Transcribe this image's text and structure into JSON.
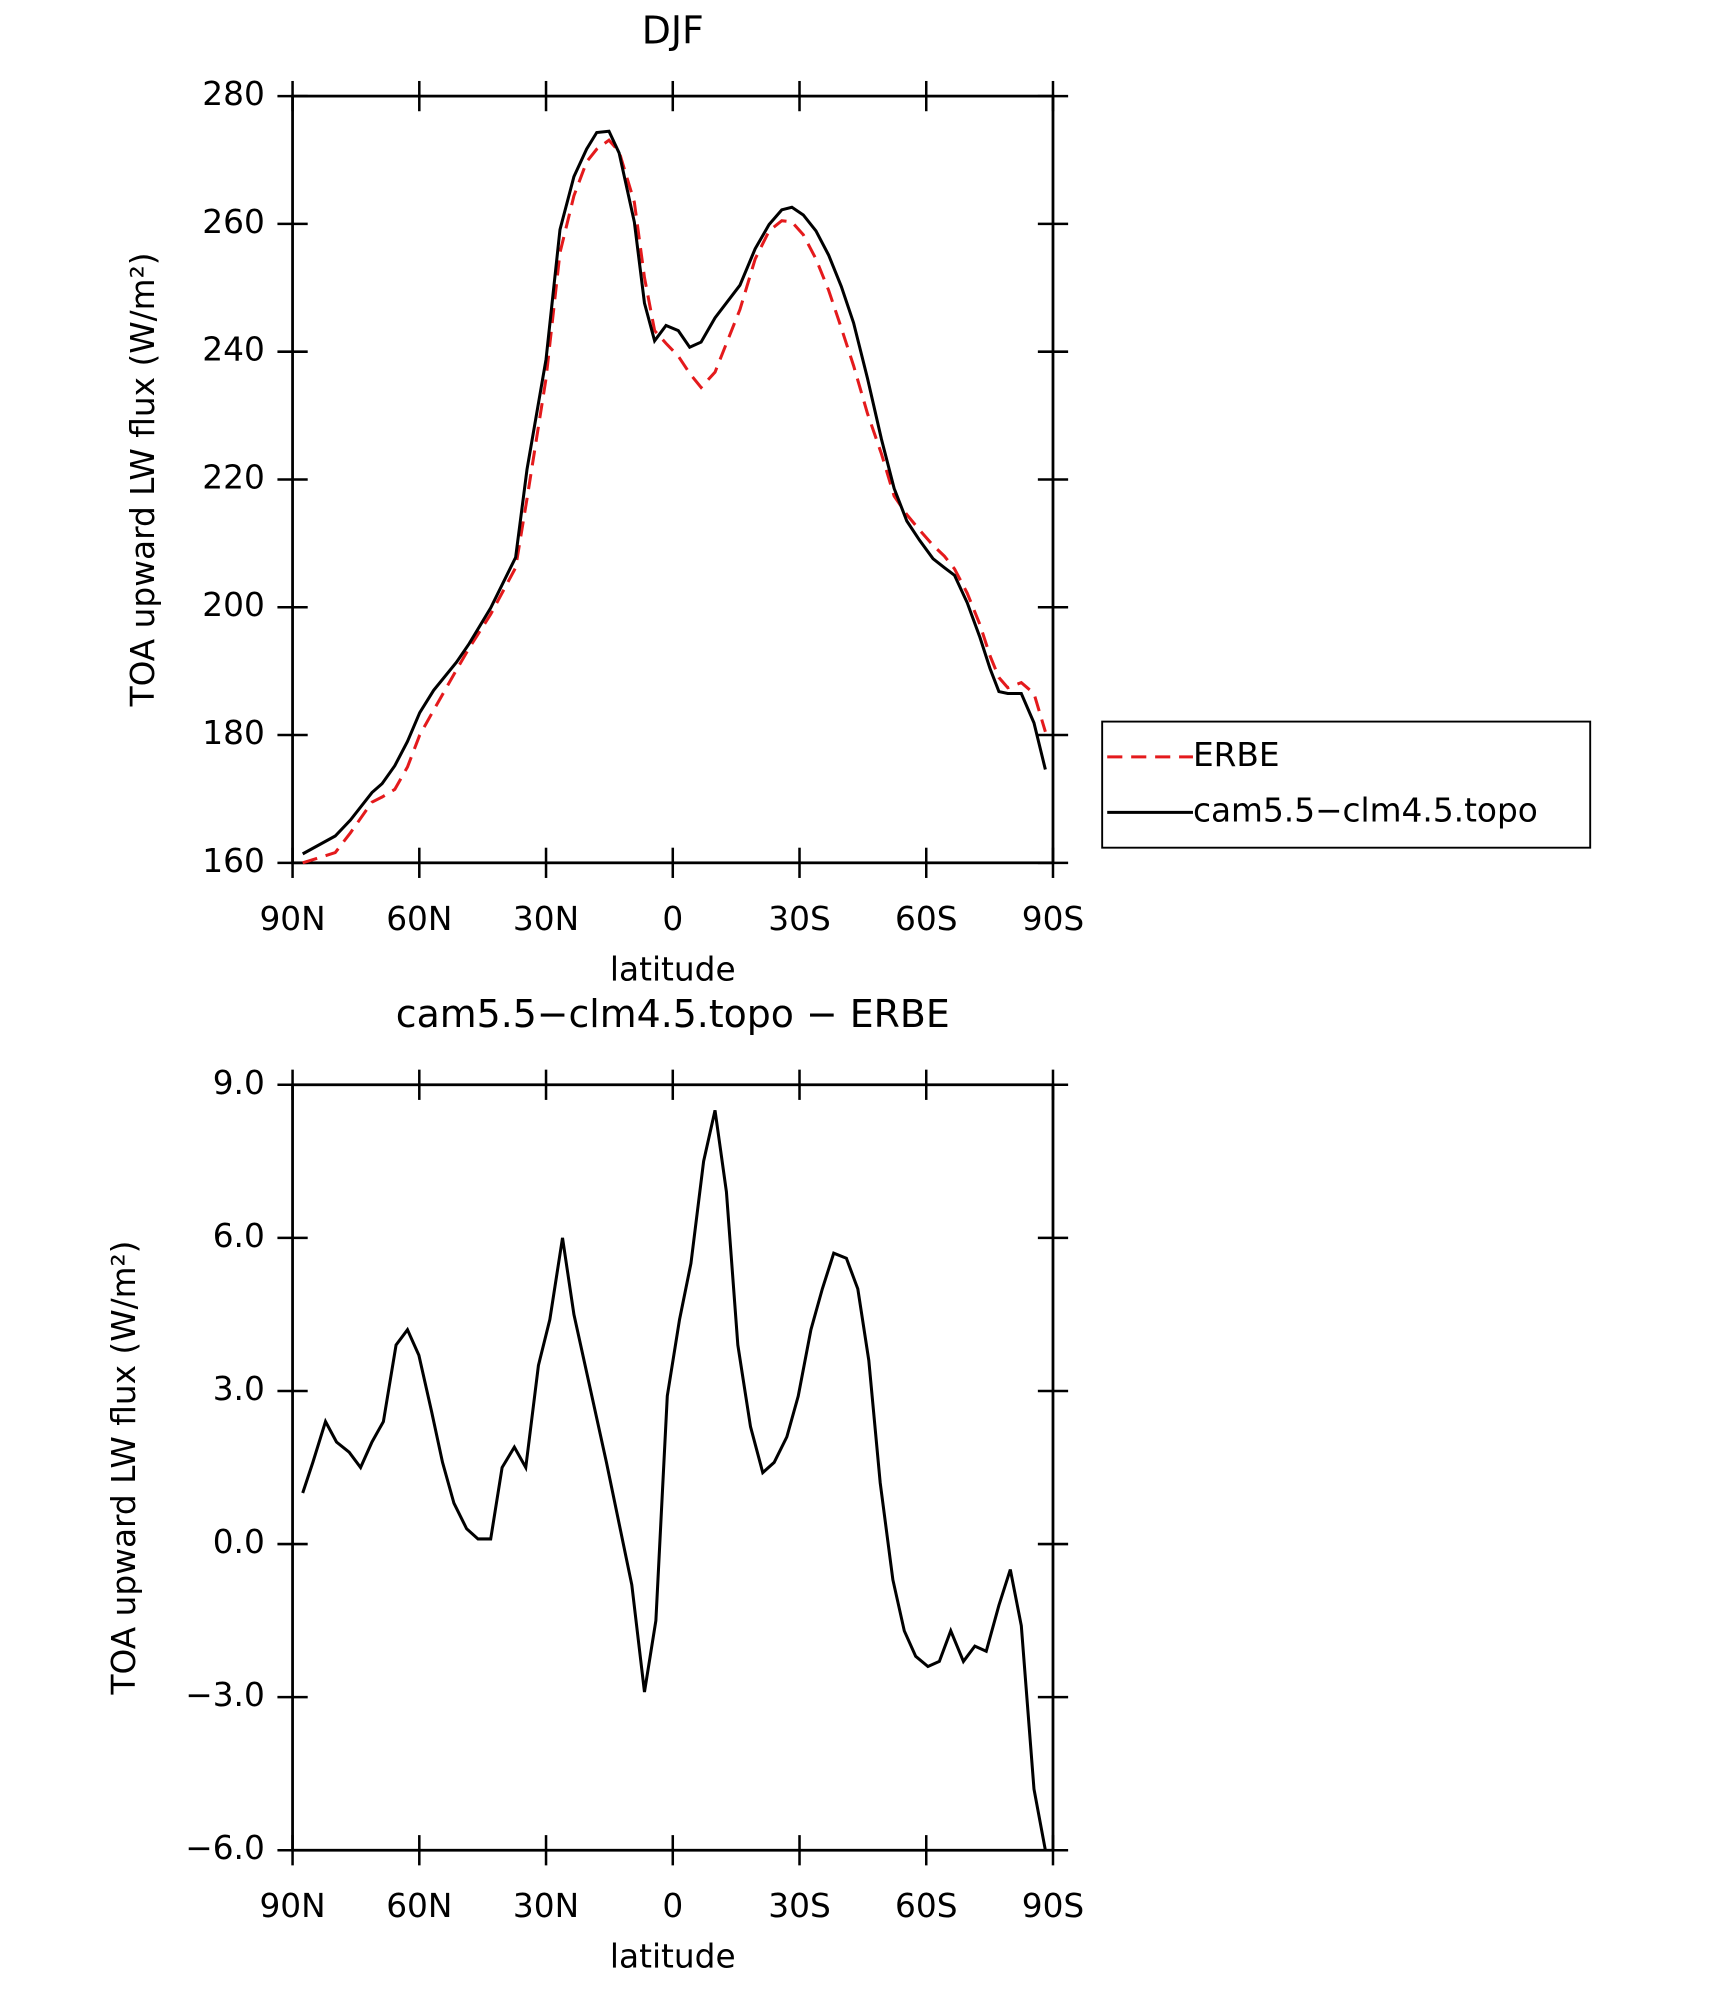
{
  "chart_data": [
    {
      "type": "line",
      "title": "DJF",
      "xlabel": "latitude",
      "ylabel": "TOA upward LW flux (W/m²)",
      "x": [
        87.6,
        79.9,
        76.3,
        71.2,
        68.8,
        65.8,
        62.8,
        59.9,
        56.6,
        51.2,
        48.2,
        43.1,
        37.2,
        34.5,
        30,
        26.7,
        23.4,
        20.4,
        18,
        15.1,
        12.7,
        9.1,
        6.7,
        4.3,
        1.6,
        -1.3,
        -4,
        -6.7,
        -10,
        -15.9,
        -19.5,
        -22.8,
        -25.8,
        -28.2,
        -30.9,
        -33.9,
        -36.9,
        -39.9,
        -42.8,
        -46.1,
        -49.4,
        -52.4,
        -55.4,
        -58.4,
        -61.6,
        -64.3,
        -66.7,
        -69.7,
        -72.7,
        -75.1,
        -77.2,
        -79.3,
        -82.5,
        -85.5,
        -88.2
      ],
      "series": [
        {
          "name": "ERBE",
          "color": "#e41a1c",
          "dash": "dashed",
          "values": [
            160,
            161.6,
            164.7,
            169.5,
            170.3,
            171.5,
            175,
            180,
            183.9,
            190.2,
            193.6,
            198.9,
            206.2,
            217,
            235.8,
            255.5,
            264.4,
            269.7,
            271.7,
            273.1,
            271.3,
            263.4,
            251.6,
            243.3,
            241.3,
            239.3,
            236.6,
            234.4,
            236.8,
            246.6,
            254.5,
            258.9,
            260.5,
            260.3,
            258.3,
            254.5,
            249.6,
            243.7,
            237.8,
            230.3,
            224,
            217.4,
            214.5,
            212.1,
            209.7,
            208,
            206,
            202.2,
            197.3,
            192.4,
            189,
            187.4,
            188.2,
            186.5,
            180.5
          ]
        },
        {
          "name": "cam5.5−clm4.5.topo",
          "color": "#000000",
          "dash": "solid",
          "values": [
            161.4,
            164.2,
            166.7,
            171,
            172.4,
            175.2,
            179,
            183.5,
            187,
            191.4,
            194.3,
            199.9,
            207.8,
            221.6,
            238.8,
            259.1,
            267.4,
            271.7,
            274.3,
            274.5,
            271.1,
            260.3,
            247.6,
            241.7,
            244.1,
            243.3,
            240.7,
            241.5,
            245.3,
            250.4,
            256.1,
            259.9,
            262.2,
            262.6,
            261.4,
            258.9,
            255.1,
            250.2,
            244.5,
            235.8,
            226.3,
            218.6,
            213.5,
            210.5,
            207.6,
            206.2,
            205,
            200.7,
            195.3,
            190.4,
            186.8,
            186.5,
            186.5,
            181.9,
            174.6
          ]
        }
      ],
      "xlim": [
        90,
        -90
      ],
      "xticks": [
        {
          "value": 90,
          "label": "90N"
        },
        {
          "value": 60,
          "label": "60N"
        },
        {
          "value": 30,
          "label": "30N"
        },
        0,
        {
          "value": -30,
          "label": "30S"
        },
        {
          "value": -60,
          "label": "60S"
        },
        {
          "value": -90,
          "label": "90S"
        }
      ],
      "ylim": [
        160,
        280
      ],
      "yticks": [
        160,
        180,
        200,
        220,
        240,
        260,
        280
      ],
      "legend": "outside-right"
    },
    {
      "type": "line",
      "title": "cam5.5−clm4.5.topo − ERBE",
      "xlabel": "latitude",
      "ylabel": "TOA upward LW flux (W/m²)",
      "x": [
        87.6,
        85.2,
        82.2,
        79.6,
        76.6,
        73.9,
        71.2,
        68.5,
        65.5,
        62.8,
        60.1,
        57.1,
        54.5,
        51.8,
        48.8,
        46.1,
        43.1,
        40.4,
        37.5,
        34.8,
        31.8,
        29.1,
        26.1,
        23.4,
        15.7,
        9.7,
        6.7,
        4,
        1.3,
        -1.6,
        -4.3,
        -7.3,
        -10,
        -12.7,
        -15.4,
        -18.4,
        -21.3,
        -24,
        -27,
        -29.7,
        -32.7,
        -35.4,
        -38.1,
        -41.1,
        -43.8,
        -46.4,
        -49.1,
        -52.1,
        -54.8,
        -57.5,
        -60.4,
        -63.1,
        -65.8,
        -68.8,
        -71.5,
        -74.2,
        -77.2,
        -79.9,
        -82.5,
        -85.5,
        -88.2
      ],
      "series": [
        {
          "color": "#000000",
          "dash": "solid",
          "values": [
            1.0,
            1.6,
            2.4,
            2.0,
            1.8,
            1.5,
            2.0,
            2.4,
            3.9,
            4.2,
            3.7,
            2.6,
            1.6,
            0.8,
            0.3,
            0.1,
            0.1,
            1.5,
            1.9,
            1.5,
            3.5,
            4.4,
            6.0,
            4.5,
            1.6,
            -0.8,
            -2.9,
            -1.5,
            2.9,
            4.4,
            5.5,
            7.5,
            8.5,
            6.9,
            3.9,
            2.3,
            1.4,
            1.6,
            2.1,
            2.9,
            4.2,
            5.0,
            5.7,
            5.6,
            5.0,
            3.6,
            1.2,
            -0.7,
            -1.7,
            -2.2,
            -2.4,
            -2.3,
            -1.7,
            -2.3,
            -2.0,
            -2.1,
            -1.2,
            -0.5,
            -1.6,
            -4.8,
            -6.0
          ]
        }
      ],
      "xlim": [
        90,
        -90
      ],
      "xticks": [
        {
          "value": 90,
          "label": "90N"
        },
        {
          "value": 60,
          "label": "60N"
        },
        {
          "value": 30,
          "label": "30N"
        },
        0,
        {
          "value": -30,
          "label": "30S"
        },
        {
          "value": -60,
          "label": "60S"
        },
        {
          "value": -90,
          "label": "90S"
        }
      ],
      "ylim": [
        -6,
        9
      ],
      "yticks": [
        {
          "value": -6,
          "label": "−6.0"
        },
        {
          "value": -3,
          "label": "−3.0"
        },
        {
          "value": 0,
          "label": "0.0"
        },
        {
          "value": 3,
          "label": "3.0"
        },
        {
          "value": 6,
          "label": "6.0"
        },
        {
          "value": 9,
          "label": "9.0"
        }
      ]
    }
  ]
}
